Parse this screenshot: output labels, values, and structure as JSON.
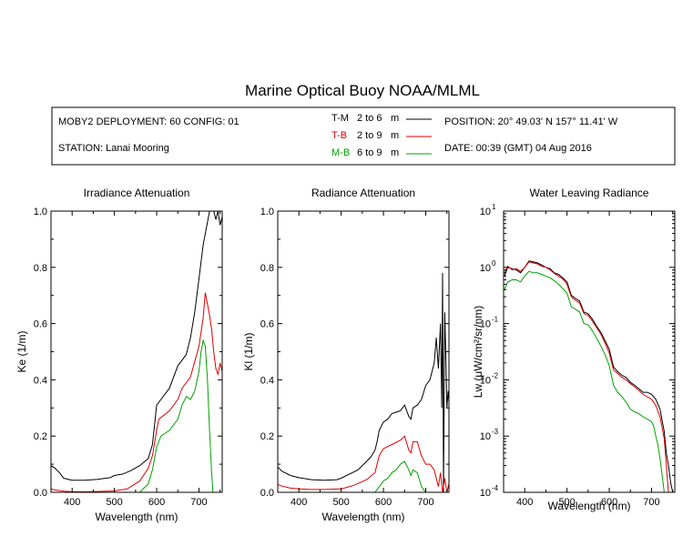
{
  "title": "Marine Optical Buoy NOAA/MLML",
  "info": {
    "deployment": "MOBY2 DEPLOYMENT: 60 CONFIG: 01",
    "station": "STATION: Lanai Mooring",
    "position": "POSITION: 20° 49.03' N   157° 11.41' W",
    "date": "DATE: 00:39 (GMT) 04 Aug 2016"
  },
  "legend": [
    {
      "code": "T-M",
      "range": "2 to 6",
      "unit": "m",
      "color": "#000000"
    },
    {
      "code": "T-B",
      "range": "2 to 9",
      "unit": "m",
      "color": "#dd0000"
    },
    {
      "code": "M-B",
      "range": "6 to 9",
      "unit": "m",
      "color": "#00a000"
    }
  ],
  "chart_data": [
    {
      "type": "line",
      "title": "Irradiance Attenuation",
      "xlabel": "Wavelength (nm)",
      "ylabel": "Ke  (1/m)",
      "xlim": [
        350,
        755
      ],
      "ylim": [
        0,
        1.0
      ],
      "xticks": [
        "400",
        "500",
        "600",
        "700"
      ],
      "yticks": [
        "0.0",
        "0.2",
        "0.4",
        "0.6",
        "0.8",
        "1.0"
      ],
      "series": [
        {
          "name": "T-M",
          "color": "#000000",
          "x": [
            350,
            360,
            370,
            380,
            400,
            430,
            460,
            490,
            500,
            520,
            540,
            560,
            580,
            590,
            597,
            600,
            610,
            630,
            650,
            660,
            670,
            680,
            690,
            700,
            710,
            720,
            725,
            730,
            735,
            740,
            745,
            750,
            755
          ],
          "y": [
            0.095,
            0.085,
            0.07,
            0.05,
            0.043,
            0.043,
            0.046,
            0.052,
            0.06,
            0.065,
            0.078,
            0.095,
            0.12,
            0.17,
            0.27,
            0.31,
            0.33,
            0.37,
            0.45,
            0.47,
            0.49,
            0.55,
            0.64,
            0.76,
            0.88,
            0.96,
            1.0,
            1.0,
            1.0,
            0.97,
            1.0,
            0.95,
            0.98
          ]
        },
        {
          "name": "T-B",
          "color": "#dd0000",
          "x": [
            350,
            360,
            380,
            400,
            430,
            460,
            500,
            530,
            560,
            580,
            590,
            600,
            605,
            630,
            650,
            660,
            680,
            700,
            710,
            715,
            720,
            725,
            730,
            735,
            740,
            745,
            750,
            755
          ],
          "y": [
            0.012,
            0.008,
            0.004,
            0.002,
            0.002,
            0.003,
            0.005,
            0.012,
            0.04,
            0.085,
            0.13,
            0.22,
            0.26,
            0.29,
            0.33,
            0.37,
            0.41,
            0.52,
            0.62,
            0.71,
            0.67,
            0.63,
            0.58,
            0.5,
            0.44,
            0.42,
            0.46,
            0.43
          ]
        },
        {
          "name": "M-B",
          "color": "#00a000",
          "x": [
            350,
            400,
            500,
            530,
            560,
            580,
            590,
            600,
            610,
            630,
            650,
            660,
            670,
            680,
            690,
            700,
            705,
            710,
            715,
            720,
            725,
            730,
            733
          ],
          "y": [
            0.0,
            0.0,
            0.0,
            0.0,
            0.0,
            0.03,
            0.08,
            0.16,
            0.2,
            0.22,
            0.26,
            0.31,
            0.34,
            0.33,
            0.36,
            0.43,
            0.5,
            0.54,
            0.52,
            0.4,
            0.22,
            0.07,
            0.0
          ]
        }
      ]
    },
    {
      "type": "line",
      "title": "Radiance Attenuation",
      "xlabel": "Wavelength (nm)",
      "ylabel": "Kl  (1/m)",
      "xlim": [
        350,
        755
      ],
      "ylim": [
        0,
        1.0
      ],
      "xticks": [
        "400",
        "500",
        "600",
        "700"
      ],
      "yticks": [
        "0.0",
        "0.2",
        "0.4",
        "0.6",
        "0.8",
        "1.0"
      ],
      "series": [
        {
          "name": "T-M",
          "color": "#000000",
          "x": [
            350,
            360,
            380,
            400,
            430,
            460,
            490,
            500,
            520,
            540,
            560,
            570,
            580,
            585,
            590,
            600,
            610,
            620,
            640,
            650,
            660,
            665,
            670,
            680,
            690,
            700,
            710,
            720,
            725,
            730,
            735,
            738,
            740,
            742,
            745,
            748,
            750,
            753,
            755
          ],
          "y": [
            0.09,
            0.075,
            0.06,
            0.052,
            0.045,
            0.043,
            0.045,
            0.05,
            0.065,
            0.08,
            0.11,
            0.125,
            0.15,
            0.18,
            0.22,
            0.25,
            0.26,
            0.28,
            0.29,
            0.31,
            0.27,
            0.26,
            0.3,
            0.31,
            0.33,
            0.38,
            0.4,
            0.46,
            0.55,
            0.44,
            0.6,
            0.3,
            0.78,
            0.0,
            0.64,
            0.45,
            0.3,
            0.36,
            0.32
          ]
        },
        {
          "name": "T-B",
          "color": "#dd0000",
          "x": [
            350,
            360,
            380,
            400,
            430,
            460,
            500,
            530,
            560,
            580,
            590,
            600,
            620,
            640,
            650,
            660,
            665,
            670,
            680,
            690,
            700,
            710,
            720,
            730,
            735,
            740,
            745,
            750,
            755
          ],
          "y": [
            0.028,
            0.022,
            0.015,
            0.012,
            0.01,
            0.01,
            0.012,
            0.025,
            0.045,
            0.07,
            0.13,
            0.155,
            0.17,
            0.185,
            0.2,
            0.15,
            0.14,
            0.18,
            0.18,
            0.13,
            0.1,
            0.1,
            0.08,
            0.02,
            0.07,
            0.0,
            0.05,
            0.0,
            0.03
          ]
        },
        {
          "name": "M-B",
          "color": "#00a000",
          "x": [
            350,
            400,
            500,
            550,
            580,
            590,
            600,
            610,
            620,
            630,
            640,
            650,
            660,
            665,
            670,
            680,
            690,
            700,
            710,
            720,
            730,
            740,
            750,
            755
          ],
          "y": [
            0.0,
            0.0,
            0.0,
            0.0,
            0.0,
            0.02,
            0.04,
            0.05,
            0.07,
            0.08,
            0.1,
            0.11,
            0.08,
            0.06,
            0.08,
            0.07,
            0.02,
            0.0,
            0.0,
            0.0,
            0.0,
            0.0,
            0.0,
            0.0
          ]
        }
      ]
    },
    {
      "type": "line",
      "title": "Water Leaving Radiance",
      "xlabel": "Wavelength (nm)",
      "ylabel": "Lw  (μW/cm²/sr/nm)",
      "yscale": "log",
      "xlim": [
        350,
        755
      ],
      "ylim": [
        0.0001,
        10
      ],
      "xticks": [
        "400",
        "500",
        "600",
        "700"
      ],
      "yticks": [
        "10^-4",
        "10^-3",
        "10^-2",
        "10^-1",
        "10^0",
        "10^1"
      ],
      "series": [
        {
          "name": "T-M",
          "color": "#000000",
          "x": [
            352,
            360,
            370,
            380,
            390,
            400,
            410,
            420,
            430,
            440,
            450,
            460,
            470,
            480,
            490,
            500,
            510,
            520,
            530,
            540,
            550,
            560,
            570,
            580,
            590,
            600,
            610,
            620,
            630,
            640,
            650,
            660,
            670,
            680,
            690,
            700,
            710,
            720,
            730,
            735,
            740,
            745,
            750
          ],
          "y": [
            0.7,
            1.0,
            0.95,
            0.9,
            0.8,
            1.0,
            1.3,
            1.25,
            1.2,
            1.1,
            1.0,
            0.95,
            0.8,
            0.75,
            0.65,
            0.55,
            0.32,
            0.28,
            0.25,
            0.16,
            0.15,
            0.12,
            0.09,
            0.07,
            0.05,
            0.035,
            0.017,
            0.014,
            0.012,
            0.011,
            0.009,
            0.008,
            0.007,
            0.006,
            0.006,
            0.0055,
            0.0045,
            0.003,
            0.0012,
            0.0005,
            0.0003,
            0.00015,
            0.0001
          ]
        },
        {
          "name": "T-B",
          "color": "#dd0000",
          "x": [
            352,
            360,
            370,
            380,
            390,
            400,
            410,
            420,
            430,
            440,
            450,
            460,
            470,
            480,
            490,
            500,
            510,
            520,
            530,
            540,
            550,
            560,
            570,
            580,
            590,
            600,
            610,
            620,
            630,
            640,
            650,
            660,
            670,
            680,
            690,
            700,
            710,
            720,
            730,
            735,
            740
          ],
          "y": [
            0.8,
            1.05,
            0.9,
            0.95,
            0.85,
            1.0,
            1.25,
            1.2,
            1.15,
            1.05,
            1.0,
            0.9,
            0.78,
            0.7,
            0.62,
            0.5,
            0.3,
            0.26,
            0.23,
            0.15,
            0.14,
            0.11,
            0.085,
            0.065,
            0.045,
            0.03,
            0.015,
            0.013,
            0.011,
            0.01,
            0.0085,
            0.0075,
            0.0065,
            0.0055,
            0.005,
            0.0045,
            0.0035,
            0.0022,
            0.0009,
            0.0003,
            0.0001
          ]
        },
        {
          "name": "M-B",
          "color": "#00a000",
          "x": [
            352,
            360,
            370,
            380,
            390,
            400,
            410,
            420,
            430,
            440,
            450,
            460,
            470,
            480,
            490,
            500,
            510,
            520,
            530,
            540,
            550,
            560,
            570,
            580,
            590,
            600,
            610,
            620,
            630,
            640,
            650,
            660,
            670,
            680,
            690,
            700,
            705,
            710,
            715,
            720,
            725,
            730
          ],
          "y": [
            0.4,
            0.55,
            0.6,
            0.6,
            0.55,
            0.7,
            0.85,
            0.8,
            0.8,
            0.75,
            0.7,
            0.65,
            0.58,
            0.5,
            0.42,
            0.35,
            0.2,
            0.18,
            0.16,
            0.1,
            0.095,
            0.075,
            0.055,
            0.04,
            0.028,
            0.018,
            0.008,
            0.006,
            0.005,
            0.004,
            0.003,
            0.0027,
            0.0025,
            0.0022,
            0.002,
            0.0018,
            0.0015,
            0.001,
            0.0007,
            0.0004,
            0.0002,
            0.0001
          ]
        }
      ]
    }
  ]
}
